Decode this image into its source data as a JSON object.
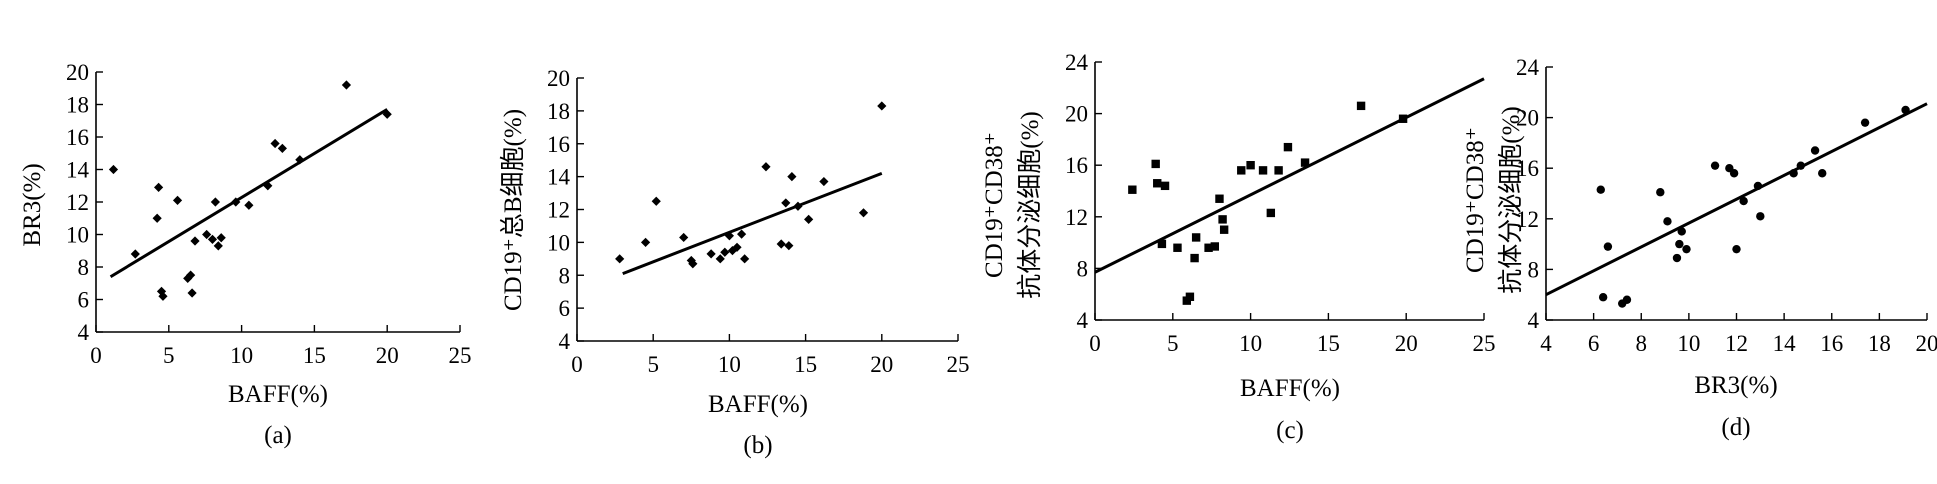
{
  "chart_data": [
    {
      "type": "scatter",
      "panel_label": "(a)",
      "xlabel": "BAFF(%)",
      "ylabel_lines": [
        "BR3(%)"
      ],
      "xlim": [
        0,
        25
      ],
      "ylim": [
        4,
        20
      ],
      "xticks": [
        0,
        5,
        10,
        15,
        20,
        25
      ],
      "yticks": [
        4,
        6,
        8,
        10,
        12,
        14,
        16,
        18,
        20
      ],
      "marker": "diamond",
      "points": [
        [
          1.2,
          14.0
        ],
        [
          2.7,
          8.8
        ],
        [
          4.2,
          11.0
        ],
        [
          4.3,
          12.9
        ],
        [
          4.5,
          6.5
        ],
        [
          4.6,
          6.2
        ],
        [
          5.6,
          12.1
        ],
        [
          6.3,
          7.3
        ],
        [
          6.5,
          7.5
        ],
        [
          6.6,
          6.4
        ],
        [
          6.8,
          9.6
        ],
        [
          7.6,
          10.0
        ],
        [
          8.0,
          9.7
        ],
        [
          8.2,
          12.0
        ],
        [
          8.4,
          9.3
        ],
        [
          8.6,
          9.8
        ],
        [
          9.6,
          12.0
        ],
        [
          10.5,
          11.8
        ],
        [
          11.8,
          13.0
        ],
        [
          12.3,
          15.6
        ],
        [
          12.8,
          15.3
        ],
        [
          14.0,
          14.6
        ],
        [
          17.2,
          19.2
        ],
        [
          20.0,
          17.4
        ]
      ],
      "fit_line": [
        [
          1.0,
          7.4
        ],
        [
          20.0,
          17.7
        ]
      ]
    },
    {
      "type": "scatter",
      "panel_label": "(b)",
      "xlabel": "BAFF(%)",
      "ylabel_lines": [
        "CD19⁺总B细胞(%)"
      ],
      "xlim": [
        0,
        25
      ],
      "ylim": [
        4,
        20
      ],
      "xticks": [
        0,
        5,
        10,
        15,
        20,
        25
      ],
      "yticks": [
        4,
        6,
        8,
        10,
        12,
        14,
        16,
        18,
        20
      ],
      "marker": "diamond",
      "points": [
        [
          2.8,
          9.0
        ],
        [
          4.5,
          10.0
        ],
        [
          5.2,
          12.5
        ],
        [
          7.0,
          10.3
        ],
        [
          7.5,
          8.9
        ],
        [
          7.6,
          8.7
        ],
        [
          8.8,
          9.3
        ],
        [
          9.4,
          9.0
        ],
        [
          9.7,
          9.4
        ],
        [
          10.0,
          10.4
        ],
        [
          10.2,
          9.5
        ],
        [
          10.5,
          9.7
        ],
        [
          10.8,
          10.5
        ],
        [
          11.0,
          9.0
        ],
        [
          12.4,
          14.6
        ],
        [
          13.4,
          9.9
        ],
        [
          13.7,
          12.4
        ],
        [
          13.9,
          9.8
        ],
        [
          14.1,
          14.0
        ],
        [
          14.5,
          12.2
        ],
        [
          15.2,
          11.4
        ],
        [
          16.2,
          13.7
        ],
        [
          18.8,
          11.8
        ],
        [
          20.0,
          18.3
        ]
      ],
      "fit_line": [
        [
          3.0,
          8.1
        ],
        [
          20.0,
          14.2
        ]
      ]
    },
    {
      "type": "scatter",
      "panel_label": "(c)",
      "xlabel": "BAFF(%)",
      "ylabel_lines": [
        "CD19⁺CD38⁺",
        "抗体分泌细胞(%)"
      ],
      "xlim": [
        0,
        25
      ],
      "ylim": [
        4,
        24
      ],
      "xticks": [
        0,
        5,
        10,
        15,
        20,
        25
      ],
      "yticks": [
        4,
        8,
        12,
        16,
        20,
        24
      ],
      "marker": "square",
      "points": [
        [
          2.4,
          14.1
        ],
        [
          3.9,
          16.1
        ],
        [
          4.0,
          14.6
        ],
        [
          4.5,
          14.4
        ],
        [
          4.3,
          9.9
        ],
        [
          5.3,
          9.6
        ],
        [
          5.9,
          5.5
        ],
        [
          6.1,
          5.8
        ],
        [
          6.4,
          8.8
        ],
        [
          6.5,
          10.4
        ],
        [
          7.3,
          9.6
        ],
        [
          7.7,
          9.7
        ],
        [
          8.0,
          13.4
        ],
        [
          8.2,
          11.8
        ],
        [
          8.3,
          11.0
        ],
        [
          9.4,
          15.6
        ],
        [
          10.0,
          16.0
        ],
        [
          10.8,
          15.6
        ],
        [
          11.3,
          12.3
        ],
        [
          11.8,
          15.6
        ],
        [
          12.4,
          17.4
        ],
        [
          13.5,
          16.2
        ],
        [
          17.1,
          20.6
        ],
        [
          19.8,
          19.6
        ]
      ],
      "fit_line": [
        [
          0,
          7.7
        ],
        [
          25,
          22.7
        ]
      ]
    },
    {
      "type": "scatter",
      "panel_label": "(d)",
      "xlabel": "BR3(%)",
      "ylabel_lines": [
        "CD19⁺CD38⁺",
        "抗体分泌细胞(%)"
      ],
      "xlim": [
        4,
        20
      ],
      "ylim": [
        4,
        24
      ],
      "xticks": [
        4,
        6,
        8,
        10,
        12,
        14,
        16,
        18,
        20
      ],
      "yticks": [
        4,
        8,
        12,
        16,
        20,
        24
      ],
      "marker": "circle",
      "points": [
        [
          6.3,
          14.3
        ],
        [
          6.4,
          5.8
        ],
        [
          6.6,
          9.8
        ],
        [
          7.2,
          5.3
        ],
        [
          7.4,
          5.6
        ],
        [
          8.8,
          14.1
        ],
        [
          9.1,
          11.8
        ],
        [
          9.5,
          8.9
        ],
        [
          9.6,
          10.0
        ],
        [
          9.7,
          11.0
        ],
        [
          9.9,
          9.6
        ],
        [
          11.1,
          16.2
        ],
        [
          11.7,
          16.0
        ],
        [
          11.9,
          15.6
        ],
        [
          12.0,
          9.6
        ],
        [
          12.3,
          13.4
        ],
        [
          12.9,
          14.6
        ],
        [
          13.0,
          12.2
        ],
        [
          14.4,
          15.6
        ],
        [
          14.7,
          16.2
        ],
        [
          15.3,
          17.4
        ],
        [
          15.6,
          15.6
        ],
        [
          17.4,
          19.6
        ],
        [
          19.1,
          20.6
        ]
      ],
      "fit_line": [
        [
          4.0,
          6.0
        ],
        [
          20.0,
          21.1
        ]
      ]
    }
  ]
}
